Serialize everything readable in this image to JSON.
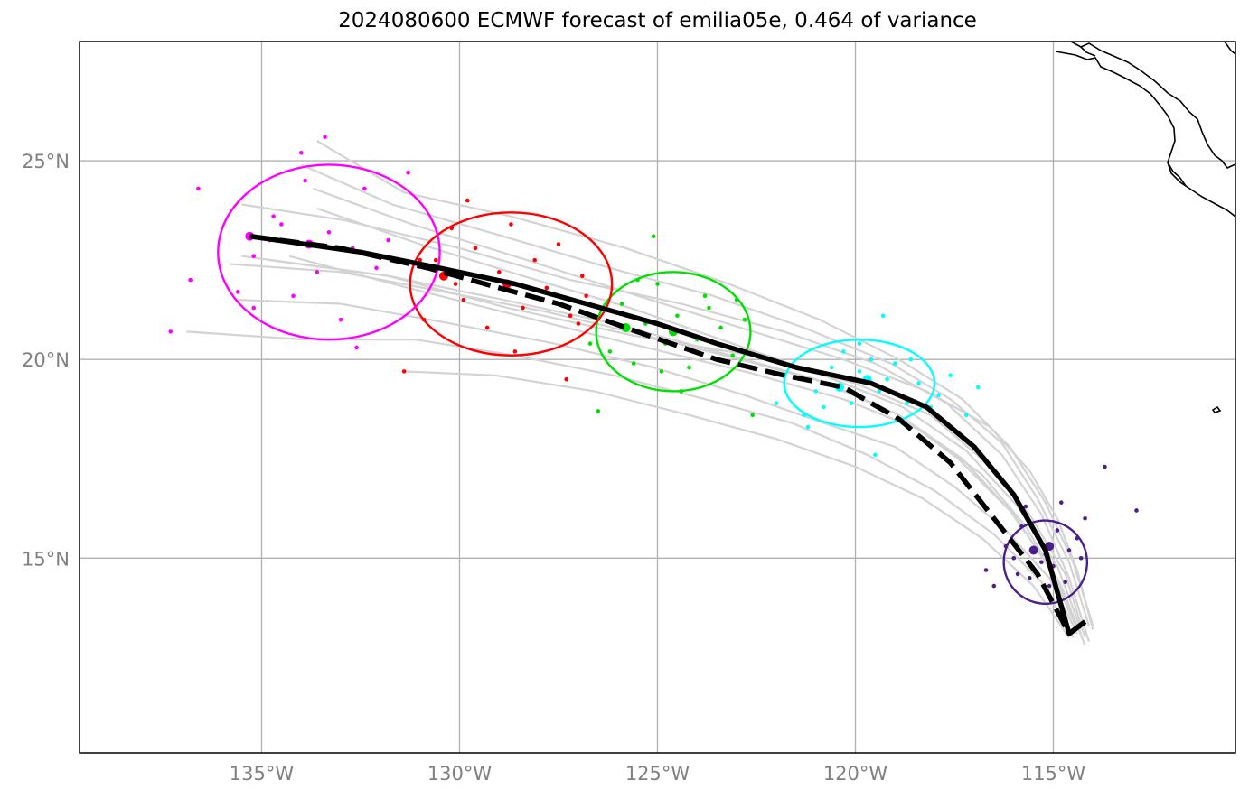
{
  "chart_data": {
    "type": "scatter",
    "title": "2024080600 ECMWF forecast of emilia05e, 0.464 of variance",
    "xlim": [
      -139.6,
      -110.4
    ],
    "ylim": [
      10.1,
      28.0
    ],
    "grid": true,
    "x_ticks": [
      {
        "value": -135,
        "label": "135°W"
      },
      {
        "value": -130,
        "label": "130°W"
      },
      {
        "value": -125,
        "label": "125°W"
      },
      {
        "value": -120,
        "label": "120°W"
      },
      {
        "value": -115,
        "label": "115°W"
      }
    ],
    "y_ticks": [
      {
        "value": 15,
        "label": "15°N"
      },
      {
        "value": 20,
        "label": "20°N"
      },
      {
        "value": 25,
        "label": "25°N"
      }
    ],
    "colors": {
      "ensemble": "#d3d3d3",
      "track": "#000000",
      "groups": [
        "#4b1f8c",
        "#00ffff",
        "#00e000",
        "#ff0000",
        "#ff00ff"
      ]
    },
    "track_solid": [
      [
        -114.2,
        13.4
      ],
      [
        -114.6,
        13.1
      ],
      [
        -115.2,
        15.2
      ],
      [
        -116.0,
        16.6
      ],
      [
        -117.0,
        17.8
      ],
      [
        -118.2,
        18.8
      ],
      [
        -119.6,
        19.4
      ],
      [
        -121.5,
        19.8
      ],
      [
        -123.5,
        20.4
      ],
      [
        -125.0,
        20.9
      ],
      [
        -126.8,
        21.4
      ],
      [
        -128.6,
        21.9
      ],
      [
        -130.5,
        22.3
      ],
      [
        -132.5,
        22.7
      ],
      [
        -135.3,
        23.1
      ]
    ],
    "track_dashed": [
      [
        -114.2,
        13.4
      ],
      [
        -114.6,
        13.1
      ],
      [
        -115.4,
        14.6
      ],
      [
        -116.5,
        16.0
      ],
      [
        -117.6,
        17.4
      ],
      [
        -118.9,
        18.5
      ],
      [
        -120.3,
        19.3
      ],
      [
        -121.8,
        19.6
      ],
      [
        -123.5,
        20.0
      ],
      [
        -125.8,
        20.8
      ],
      [
        -127.5,
        21.4
      ],
      [
        -129.0,
        21.8
      ],
      [
        -130.8,
        22.3
      ],
      [
        -133.0,
        22.8
      ],
      [
        -135.3,
        23.1
      ]
    ],
    "ensemble_tracks": [
      [
        [
          -114.2,
          13.0
        ],
        [
          -114.7,
          14.6
        ],
        [
          -115.6,
          16.1
        ],
        [
          -116.7,
          17.4
        ],
        [
          -118.1,
          18.6
        ],
        [
          -120.0,
          19.4
        ],
        [
          -122.6,
          20.1
        ],
        [
          -125.6,
          20.6
        ],
        [
          -128.8,
          21.3
        ],
        [
          -131.8,
          22.1
        ],
        [
          -135.5,
          22.6
        ]
      ],
      [
        [
          -114.3,
          13.2
        ],
        [
          -114.9,
          14.8
        ],
        [
          -115.9,
          16.3
        ],
        [
          -117.2,
          17.7
        ],
        [
          -118.8,
          18.8
        ],
        [
          -120.8,
          19.6
        ],
        [
          -123.1,
          20.4
        ],
        [
          -125.7,
          21.3
        ],
        [
          -128.4,
          22.1
        ],
        [
          -131.0,
          22.9
        ],
        [
          -133.6,
          23.8
        ]
      ],
      [
        [
          -114.1,
          13.3
        ],
        [
          -114.6,
          14.9
        ],
        [
          -115.4,
          16.5
        ],
        [
          -116.3,
          17.9
        ],
        [
          -117.6,
          19.0
        ],
        [
          -119.1,
          19.9
        ],
        [
          -121.3,
          20.8
        ],
        [
          -123.6,
          21.6
        ],
        [
          -126.2,
          22.3
        ],
        [
          -128.9,
          23.1
        ],
        [
          -131.7,
          23.9
        ],
        [
          -134.0,
          24.9
        ]
      ],
      [
        [
          -114.4,
          13.1
        ],
        [
          -115.1,
          14.5
        ],
        [
          -116.2,
          15.7
        ],
        [
          -117.5,
          16.8
        ],
        [
          -119.0,
          17.8
        ],
        [
          -120.8,
          18.4
        ],
        [
          -122.8,
          19.1
        ],
        [
          -125.1,
          19.8
        ],
        [
          -127.6,
          20.4
        ],
        [
          -130.2,
          20.9
        ],
        [
          -133.0,
          21.4
        ],
        [
          -135.6,
          21.5
        ]
      ],
      [
        [
          -114.0,
          13.2
        ],
        [
          -114.4,
          14.7
        ],
        [
          -114.9,
          16.0
        ],
        [
          -115.6,
          17.2
        ],
        [
          -116.6,
          18.3
        ],
        [
          -118.2,
          19.2
        ],
        [
          -120.3,
          20.0
        ],
        [
          -122.9,
          20.8
        ],
        [
          -125.5,
          21.6
        ],
        [
          -128.3,
          22.5
        ],
        [
          -131.2,
          23.4
        ],
        [
          -133.7,
          24.3
        ]
      ],
      [
        [
          -114.5,
          13.0
        ],
        [
          -115.3,
          14.4
        ],
        [
          -116.5,
          15.6
        ],
        [
          -118.0,
          16.7
        ],
        [
          -119.7,
          17.6
        ],
        [
          -121.6,
          18.4
        ],
        [
          -123.8,
          19.0
        ],
        [
          -126.1,
          19.6
        ],
        [
          -128.6,
          20.1
        ],
        [
          -131.1,
          20.5
        ],
        [
          -133.9,
          20.5
        ],
        [
          -136.9,
          20.7
        ]
      ],
      [
        [
          -114.2,
          12.8
        ],
        [
          -114.8,
          14.3
        ],
        [
          -115.7,
          15.8
        ],
        [
          -116.8,
          17.1
        ],
        [
          -118.3,
          18.2
        ],
        [
          -120.3,
          19.0
        ],
        [
          -122.8,
          19.7
        ],
        [
          -125.7,
          20.4
        ],
        [
          -128.5,
          21.1
        ],
        [
          -131.3,
          21.8
        ],
        [
          -134.3,
          22.6
        ]
      ],
      [
        [
          -114.0,
          13.3
        ],
        [
          -114.5,
          14.9
        ],
        [
          -115.2,
          16.4
        ],
        [
          -116.1,
          17.8
        ],
        [
          -117.3,
          19.0
        ],
        [
          -118.9,
          20.0
        ],
        [
          -120.9,
          21.0
        ],
        [
          -123.2,
          21.9
        ],
        [
          -125.8,
          22.8
        ],
        [
          -128.7,
          23.6
        ],
        [
          -131.4,
          24.2
        ],
        [
          -133.6,
          25.5
        ]
      ],
      [
        [
          -114.3,
          13.1
        ],
        [
          -115.0,
          14.6
        ],
        [
          -116.0,
          16.1
        ],
        [
          -117.3,
          17.5
        ],
        [
          -118.9,
          18.6
        ],
        [
          -121.0,
          19.5
        ],
        [
          -123.5,
          20.2
        ],
        [
          -126.1,
          20.9
        ],
        [
          -128.9,
          21.5
        ],
        [
          -131.8,
          22.1
        ],
        [
          -134.8,
          22.5
        ]
      ],
      [
        [
          -114.6,
          13.0
        ],
        [
          -115.5,
          14.3
        ],
        [
          -116.8,
          15.5
        ],
        [
          -118.3,
          16.5
        ],
        [
          -120.0,
          17.3
        ],
        [
          -122.0,
          18.0
        ],
        [
          -124.2,
          18.6
        ],
        [
          -126.6,
          19.2
        ],
        [
          -129.1,
          19.6
        ],
        [
          -131.4,
          19.7
        ]
      ],
      [
        [
          -114.1,
          12.9
        ],
        [
          -114.6,
          14.5
        ],
        [
          -115.3,
          16.1
        ],
        [
          -116.3,
          17.6
        ],
        [
          -117.7,
          18.9
        ],
        [
          -119.5,
          19.9
        ],
        [
          -121.8,
          20.7
        ],
        [
          -124.4,
          21.4
        ],
        [
          -127.2,
          22.0
        ],
        [
          -130.0,
          22.8
        ],
        [
          -132.9,
          23.5
        ],
        [
          -135.5,
          23.9
        ]
      ],
      [
        [
          -114.4,
          13.2
        ],
        [
          -115.1,
          14.8
        ],
        [
          -116.1,
          16.2
        ],
        [
          -117.4,
          17.5
        ],
        [
          -118.9,
          18.6
        ],
        [
          -120.7,
          19.4
        ],
        [
          -122.9,
          20.0
        ],
        [
          -125.3,
          20.6
        ],
        [
          -127.8,
          21.2
        ],
        [
          -130.4,
          21.7
        ],
        [
          -133.0,
          22.2
        ],
        [
          -135.8,
          22.4
        ]
      ]
    ],
    "groups": [
      {
        "color": "#4b1f8c",
        "ellipse": {
          "cx": -115.2,
          "cy": 14.9,
          "rx": 1.05,
          "ry": 1.05,
          "angle": -40
        },
        "centers": [
          [
            -115.5,
            15.2
          ],
          [
            -115.1,
            15.3
          ]
        ],
        "points": [
          [
            -116.5,
            14.3
          ],
          [
            -116.2,
            15.3
          ],
          [
            -115.9,
            14.6
          ],
          [
            -115.8,
            15.8
          ],
          [
            -115.6,
            14.5
          ],
          [
            -115.4,
            15.6
          ],
          [
            -115.3,
            14.9
          ],
          [
            -115.2,
            15.1
          ],
          [
            -115.0,
            14.8
          ],
          [
            -114.8,
            16.4
          ],
          [
            -114.6,
            15.2
          ],
          [
            -114.4,
            15.5
          ],
          [
            -114.3,
            15.0
          ],
          [
            -114.7,
            14.4
          ],
          [
            -116.0,
            15.0
          ],
          [
            -115.7,
            16.3
          ],
          [
            -114.9,
            15.7
          ],
          [
            -115.1,
            14.3
          ],
          [
            -113.7,
            17.3
          ],
          [
            -112.9,
            16.2
          ],
          [
            -116.7,
            14.7
          ],
          [
            -114.2,
            16.0
          ]
        ]
      },
      {
        "color": "#00ffff",
        "ellipse": {
          "cx": -119.9,
          "cy": 19.4,
          "rx": 1.9,
          "ry": 1.1,
          "angle": 0
        },
        "centers": [
          [
            -120.4,
            19.3
          ],
          [
            -119.7,
            19.5
          ]
        ],
        "points": [
          [
            -121.3,
            18.6
          ],
          [
            -121.0,
            19.2
          ],
          [
            -120.8,
            18.8
          ],
          [
            -120.6,
            19.8
          ],
          [
            -120.3,
            20.2
          ],
          [
            -120.1,
            18.9
          ],
          [
            -119.9,
            19.7
          ],
          [
            -119.6,
            20.0
          ],
          [
            -119.4,
            19.2
          ],
          [
            -119.2,
            19.5
          ],
          [
            -119.0,
            19.9
          ],
          [
            -118.7,
            18.9
          ],
          [
            -118.4,
            19.4
          ],
          [
            -118.1,
            18.8
          ],
          [
            -117.9,
            19.1
          ],
          [
            -117.6,
            19.6
          ],
          [
            -121.2,
            18.3
          ],
          [
            -119.9,
            20.4
          ],
          [
            -119.5,
            17.6
          ],
          [
            -118.6,
            20.0
          ],
          [
            -117.2,
            18.6
          ],
          [
            -122.0,
            18.9
          ],
          [
            -116.9,
            19.3
          ],
          [
            -119.3,
            21.1
          ]
        ]
      },
      {
        "color": "#00e000",
        "ellipse": {
          "cx": -124.6,
          "cy": 20.7,
          "rx": 1.95,
          "ry": 1.5,
          "angle": 0
        },
        "centers": [
          [
            -125.8,
            20.8
          ],
          [
            -124.6,
            20.7
          ]
        ],
        "points": [
          [
            -126.2,
            20.2
          ],
          [
            -125.9,
            21.4
          ],
          [
            -125.6,
            19.9
          ],
          [
            -125.3,
            20.9
          ],
          [
            -125.0,
            21.9
          ],
          [
            -124.8,
            20.4
          ],
          [
            -124.5,
            21.1
          ],
          [
            -124.2,
            19.8
          ],
          [
            -124.0,
            20.5
          ],
          [
            -123.7,
            21.3
          ],
          [
            -123.4,
            20.8
          ],
          [
            -123.1,
            20.1
          ],
          [
            -122.8,
            21.0
          ],
          [
            -125.5,
            22.0
          ],
          [
            -124.9,
            19.7
          ],
          [
            -123.8,
            21.6
          ],
          [
            -122.6,
            18.6
          ],
          [
            -125.1,
            23.1
          ],
          [
            -126.5,
            18.7
          ],
          [
            -124.4,
            19.2
          ],
          [
            -126.7,
            20.4
          ],
          [
            -123.0,
            21.5
          ]
        ]
      },
      {
        "color": "#ff0000",
        "ellipse": {
          "cx": -128.7,
          "cy": 21.9,
          "rx": 2.55,
          "ry": 1.8,
          "angle": 0
        },
        "centers": [
          [
            -130.4,
            22.1
          ],
          [
            -128.8,
            21.9
          ]
        ],
        "points": [
          [
            -130.9,
            21.0
          ],
          [
            -130.6,
            22.5
          ],
          [
            -130.2,
            23.3
          ],
          [
            -129.9,
            21.5
          ],
          [
            -129.6,
            22.8
          ],
          [
            -129.3,
            20.8
          ],
          [
            -129.0,
            22.2
          ],
          [
            -128.7,
            23.4
          ],
          [
            -128.4,
            21.3
          ],
          [
            -128.1,
            22.5
          ],
          [
            -127.8,
            21.8
          ],
          [
            -127.5,
            22.9
          ],
          [
            -127.2,
            21.1
          ],
          [
            -126.9,
            22.1
          ],
          [
            -127.3,
            19.5
          ],
          [
            -129.8,
            24.0
          ],
          [
            -131.4,
            19.7
          ],
          [
            -128.6,
            20.2
          ],
          [
            -127.0,
            20.9
          ],
          [
            -130.1,
            21.9
          ],
          [
            -131.0,
            22.5
          ],
          [
            -126.8,
            21.6
          ]
        ]
      },
      {
        "color": "#ff00ff",
        "ellipse": {
          "cx": -133.3,
          "cy": 22.7,
          "rx": 2.8,
          "ry": 2.2,
          "angle": 0
        },
        "centers": [
          [
            -135.3,
            23.1
          ],
          [
            -133.8,
            22.9
          ]
        ],
        "points": [
          [
            -135.2,
            22.6
          ],
          [
            -134.8,
            23.0
          ],
          [
            -134.5,
            23.4
          ],
          [
            -134.2,
            21.6
          ],
          [
            -133.9,
            24.5
          ],
          [
            -133.6,
            22.2
          ],
          [
            -133.3,
            23.2
          ],
          [
            -133.0,
            21.0
          ],
          [
            -132.7,
            22.8
          ],
          [
            -132.4,
            24.3
          ],
          [
            -132.1,
            22.3
          ],
          [
            -131.8,
            23.0
          ],
          [
            -136.6,
            24.3
          ],
          [
            -135.6,
            21.7
          ],
          [
            -134.0,
            25.2
          ],
          [
            -133.4,
            25.6
          ],
          [
            -137.3,
            20.7
          ],
          [
            -135.2,
            21.3
          ],
          [
            -132.6,
            20.3
          ],
          [
            -131.3,
            24.7
          ],
          [
            -136.8,
            22.0
          ],
          [
            -134.7,
            23.6
          ]
        ]
      }
    ]
  }
}
